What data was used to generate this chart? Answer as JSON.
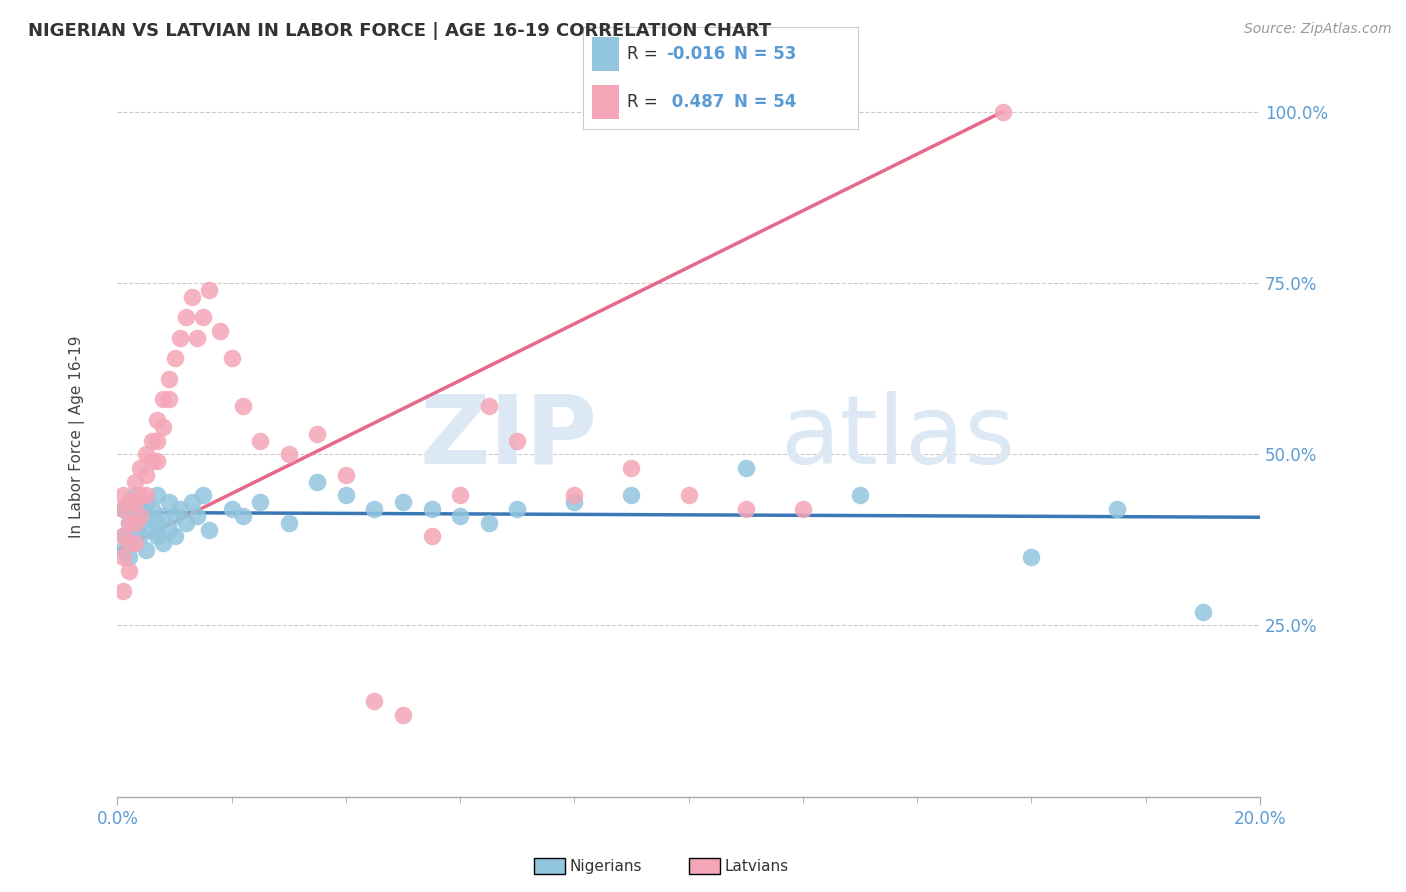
{
  "title": "NIGERIAN VS LATVIAN IN LABOR FORCE | AGE 16-19 CORRELATION CHART",
  "source": "Source: ZipAtlas.com",
  "ylabel_label": "In Labor Force | Age 16-19",
  "legend_nigerians": "Nigerians",
  "legend_latvians": "Latvians",
  "R_nigerian": -0.016,
  "N_nigerian": 53,
  "R_latvian": 0.487,
  "N_latvian": 54,
  "blue_color": "#92c5de",
  "pink_color": "#f4a6b8",
  "blue_line_color": "#3a78b5",
  "pink_line_color": "#e8688a",
  "watermark_zip": "ZIP",
  "watermark_atlas": "atlas",
  "xmin": 0.0,
  "xmax": 0.2,
  "ymin": 0.0,
  "ymax": 1.05,
  "yticks": [
    0.25,
    0.5,
    0.75,
    1.0
  ],
  "ytick_labels": [
    "25.0%",
    "50.0%",
    "75.0%",
    "100.0%"
  ],
  "xtick_labels": [
    "0.0%",
    "20.0%"
  ],
  "xtick_positions": [
    0.0,
    0.2
  ],
  "nigerian_x": [
    0.001,
    0.001,
    0.001,
    0.002,
    0.002,
    0.002,
    0.002,
    0.003,
    0.003,
    0.003,
    0.003,
    0.004,
    0.004,
    0.004,
    0.005,
    0.005,
    0.005,
    0.006,
    0.006,
    0.007,
    0.007,
    0.007,
    0.008,
    0.008,
    0.009,
    0.009,
    0.01,
    0.01,
    0.011,
    0.012,
    0.013,
    0.014,
    0.015,
    0.016,
    0.02,
    0.022,
    0.025,
    0.03,
    0.035,
    0.04,
    0.045,
    0.05,
    0.055,
    0.06,
    0.065,
    0.07,
    0.08,
    0.09,
    0.11,
    0.13,
    0.16,
    0.175,
    0.19
  ],
  "nigerian_y": [
    0.42,
    0.38,
    0.36,
    0.4,
    0.43,
    0.38,
    0.35,
    0.41,
    0.39,
    0.44,
    0.37,
    0.4,
    0.42,
    0.38,
    0.41,
    0.43,
    0.36,
    0.42,
    0.39,
    0.4,
    0.38,
    0.44,
    0.41,
    0.37,
    0.43,
    0.39,
    0.41,
    0.38,
    0.42,
    0.4,
    0.43,
    0.41,
    0.44,
    0.39,
    0.42,
    0.41,
    0.43,
    0.4,
    0.46,
    0.44,
    0.42,
    0.43,
    0.42,
    0.41,
    0.4,
    0.42,
    0.43,
    0.44,
    0.48,
    0.44,
    0.35,
    0.42,
    0.27
  ],
  "latvian_x": [
    0.001,
    0.001,
    0.001,
    0.001,
    0.001,
    0.002,
    0.002,
    0.002,
    0.002,
    0.003,
    0.003,
    0.003,
    0.003,
    0.004,
    0.004,
    0.004,
    0.005,
    0.005,
    0.005,
    0.006,
    0.006,
    0.007,
    0.007,
    0.007,
    0.008,
    0.008,
    0.009,
    0.009,
    0.01,
    0.011,
    0.012,
    0.013,
    0.014,
    0.015,
    0.016,
    0.018,
    0.02,
    0.022,
    0.025,
    0.03,
    0.035,
    0.04,
    0.045,
    0.05,
    0.055,
    0.06,
    0.065,
    0.07,
    0.08,
    0.09,
    0.1,
    0.11,
    0.12,
    0.155
  ],
  "latvian_y": [
    0.44,
    0.42,
    0.38,
    0.35,
    0.3,
    0.43,
    0.4,
    0.37,
    0.33,
    0.46,
    0.43,
    0.4,
    0.37,
    0.48,
    0.44,
    0.41,
    0.5,
    0.47,
    0.44,
    0.52,
    0.49,
    0.55,
    0.52,
    0.49,
    0.58,
    0.54,
    0.61,
    0.58,
    0.64,
    0.67,
    0.7,
    0.73,
    0.67,
    0.7,
    0.74,
    0.68,
    0.64,
    0.57,
    0.52,
    0.5,
    0.53,
    0.47,
    0.14,
    0.12,
    0.38,
    0.44,
    0.57,
    0.52,
    0.44,
    0.48,
    0.44,
    0.42,
    0.42,
    1.0
  ],
  "nig_line_x0": 0.0,
  "nig_line_x1": 0.2,
  "nig_line_y0": 0.415,
  "nig_line_y1": 0.408,
  "lat_line_x0": 0.0,
  "lat_line_x1": 0.155,
  "lat_line_y0": 0.36,
  "lat_line_y1": 1.0
}
